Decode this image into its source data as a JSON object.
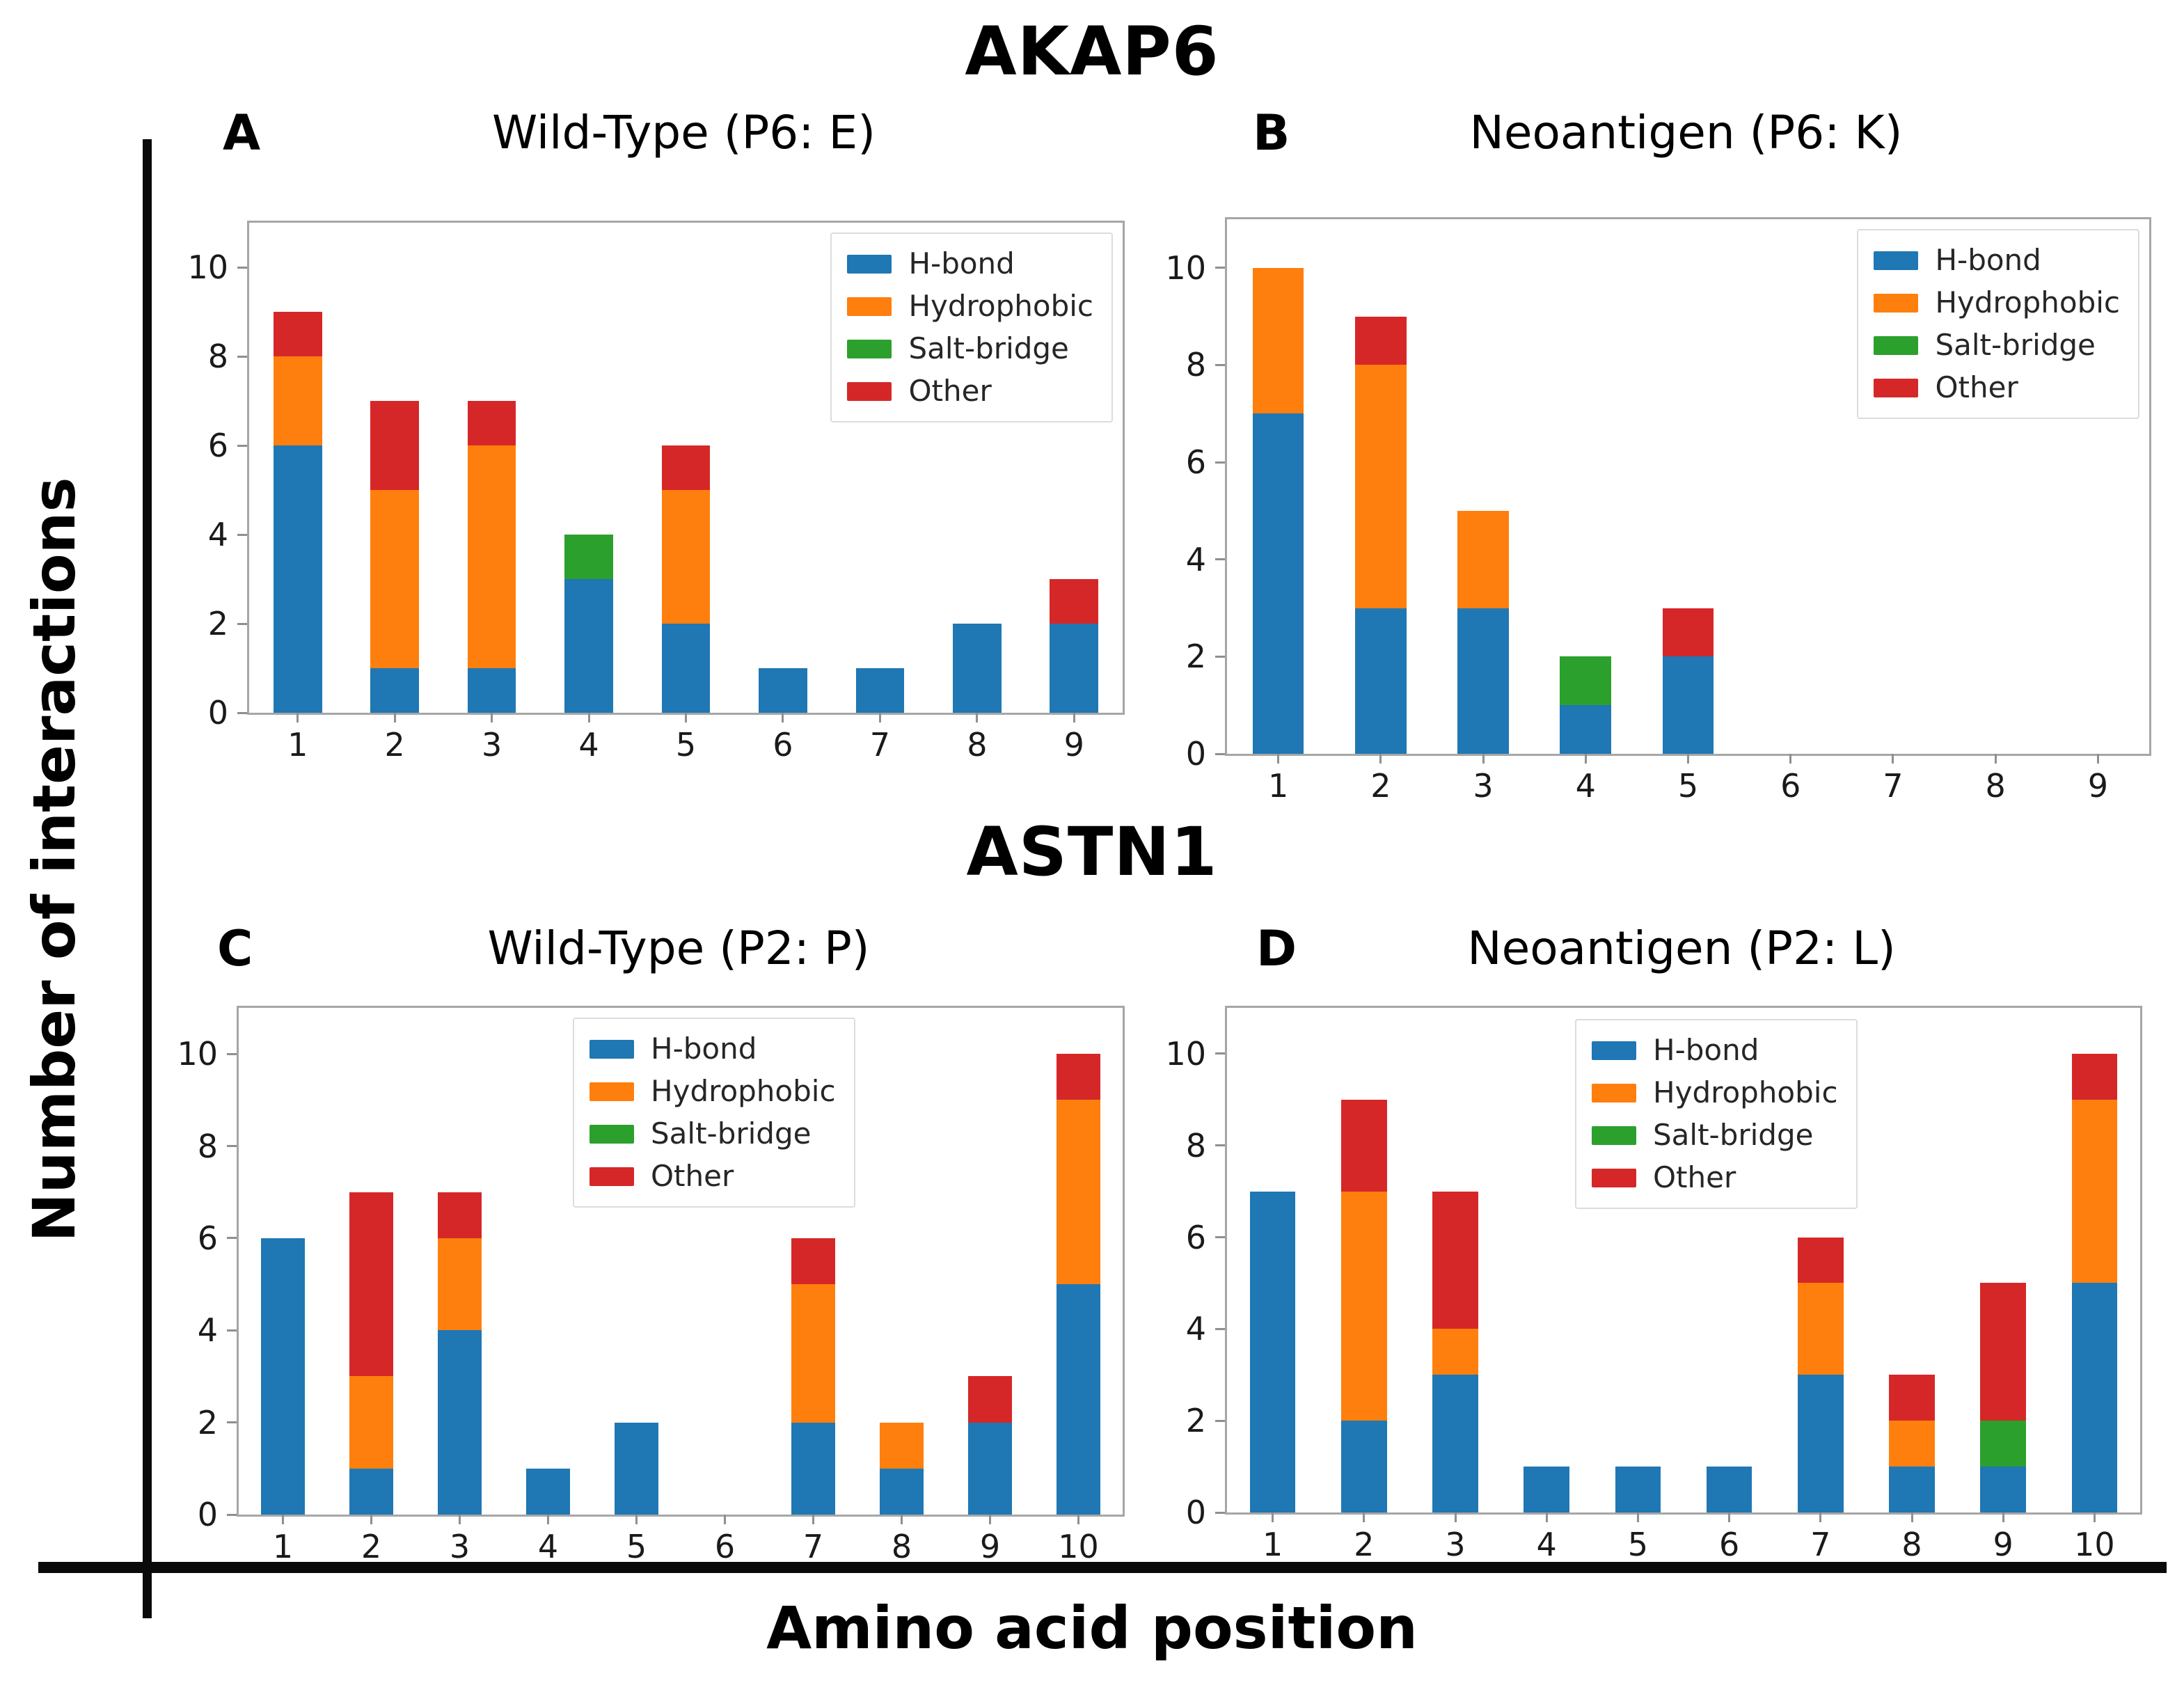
{
  "figure": {
    "top_title": "AKAP6",
    "middle_title": "ASTN1",
    "y_axis_label": "Number of interactions",
    "x_axis_label": "Amino acid position"
  },
  "legend": {
    "labels": [
      "H-bond",
      "Hydrophobic",
      "Salt-bridge",
      "Other"
    ]
  },
  "colors": {
    "h_bond": "#1f77b4",
    "hydrophobic": "#ff7f0e",
    "salt_bridge": "#2ca02c",
    "other": "#d62728",
    "axis_spine": "#a6a6a6",
    "outer_lines": "#0a0a0a"
  },
  "chart_data": [
    {
      "type": "bar",
      "stacked": true,
      "panel_label": "A",
      "title": "Wild-Type (P6: E)",
      "group_title": "AKAP6",
      "categories": [
        "1",
        "2",
        "3",
        "4",
        "5",
        "6",
        "7",
        "8",
        "9"
      ],
      "series": [
        {
          "name": "H-bond",
          "color": "#1f77b4",
          "values": [
            6,
            1,
            1,
            3,
            2,
            1,
            1,
            2,
            2
          ]
        },
        {
          "name": "Hydrophobic",
          "color": "#ff7f0e",
          "values": [
            2,
            4,
            5,
            0,
            3,
            0,
            0,
            0,
            0
          ]
        },
        {
          "name": "Salt-bridge",
          "color": "#2ca02c",
          "values": [
            0,
            0,
            0,
            1,
            0,
            0,
            0,
            0,
            0
          ]
        },
        {
          "name": "Other",
          "color": "#d62728",
          "values": [
            1,
            2,
            1,
            0,
            1,
            0,
            0,
            0,
            1
          ]
        }
      ],
      "totals": [
        9,
        7,
        7,
        4,
        6,
        1,
        1,
        2,
        3
      ],
      "ylim": [
        0,
        11
      ],
      "yticks": [
        "0",
        "2",
        "4",
        "6",
        "8",
        "10"
      ],
      "grid": false,
      "legend_position": "upper-right"
    },
    {
      "type": "bar",
      "stacked": true,
      "panel_label": "B",
      "title": "Neoantigen (P6: K)",
      "group_title": "AKAP6",
      "categories": [
        "1",
        "2",
        "3",
        "4",
        "5",
        "6",
        "7",
        "8",
        "9"
      ],
      "series": [
        {
          "name": "H-bond",
          "color": "#1f77b4",
          "values": [
            7,
            3,
            3,
            1,
            2,
            0,
            0,
            0,
            0
          ]
        },
        {
          "name": "Hydrophobic",
          "color": "#ff7f0e",
          "values": [
            3,
            5,
            2,
            0,
            0,
            0,
            0,
            0,
            0
          ]
        },
        {
          "name": "Salt-bridge",
          "color": "#2ca02c",
          "values": [
            0,
            0,
            0,
            1,
            0,
            0,
            0,
            0,
            0
          ]
        },
        {
          "name": "Other",
          "color": "#d62728",
          "values": [
            0,
            1,
            0,
            0,
            1,
            0,
            0,
            0,
            0
          ]
        }
      ],
      "totals": [
        10,
        9,
        5,
        2,
        3,
        0,
        0,
        0,
        0
      ],
      "ylim": [
        0,
        11
      ],
      "yticks": [
        "0",
        "2",
        "4",
        "6",
        "8",
        "10"
      ],
      "grid": false,
      "legend_position": "upper-right"
    },
    {
      "type": "bar",
      "stacked": true,
      "panel_label": "C",
      "title": "Wild-Type (P2: P)",
      "group_title": "ASTN1",
      "categories": [
        "1",
        "2",
        "3",
        "4",
        "5",
        "6",
        "7",
        "8",
        "9",
        "10"
      ],
      "series": [
        {
          "name": "H-bond",
          "color": "#1f77b4",
          "values": [
            6,
            1,
            4,
            1,
            2,
            0,
            2,
            1,
            2,
            5
          ]
        },
        {
          "name": "Hydrophobic",
          "color": "#ff7f0e",
          "values": [
            0,
            2,
            2,
            0,
            0,
            0,
            3,
            1,
            0,
            4
          ]
        },
        {
          "name": "Salt-bridge",
          "color": "#2ca02c",
          "values": [
            0,
            0,
            0,
            0,
            0,
            0,
            0,
            0,
            0,
            0
          ]
        },
        {
          "name": "Other",
          "color": "#d62728",
          "values": [
            0,
            4,
            1,
            0,
            0,
            0,
            1,
            0,
            1,
            1
          ]
        }
      ],
      "totals": [
        6,
        7,
        7,
        1,
        2,
        0,
        6,
        2,
        3,
        10
      ],
      "ylim": [
        0,
        11
      ],
      "yticks": [
        "0",
        "2",
        "4",
        "6",
        "8",
        "10"
      ],
      "grid": false,
      "legend_position": "upper-center"
    },
    {
      "type": "bar",
      "stacked": true,
      "panel_label": "D",
      "title": "Neoantigen (P2: L)",
      "group_title": "ASTN1",
      "categories": [
        "1",
        "2",
        "3",
        "4",
        "5",
        "6",
        "7",
        "8",
        "9",
        "10"
      ],
      "series": [
        {
          "name": "H-bond",
          "color": "#1f77b4",
          "values": [
            7,
            2,
            3,
            1,
            1,
            1,
            3,
            1,
            1,
            5
          ]
        },
        {
          "name": "Hydrophobic",
          "color": "#ff7f0e",
          "values": [
            0,
            5,
            1,
            0,
            0,
            0,
            2,
            1,
            0,
            4
          ]
        },
        {
          "name": "Salt-bridge",
          "color": "#2ca02c",
          "values": [
            0,
            0,
            0,
            0,
            0,
            0,
            0,
            0,
            1,
            0
          ]
        },
        {
          "name": "Other",
          "color": "#d62728",
          "values": [
            0,
            2,
            3,
            0,
            0,
            0,
            1,
            1,
            3,
            1
          ]
        }
      ],
      "totals": [
        7,
        9,
        7,
        1,
        1,
        1,
        6,
        3,
        5,
        10
      ],
      "ylim": [
        0,
        11
      ],
      "yticks": [
        "0",
        "2",
        "4",
        "6",
        "8",
        "10"
      ],
      "grid": false,
      "legend_position": "upper-center"
    }
  ]
}
